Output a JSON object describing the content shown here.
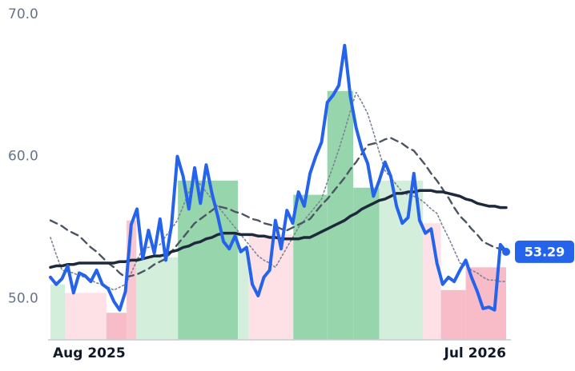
{
  "chart_data": {
    "type": "line",
    "categories": [
      "Aug 2025",
      null,
      null,
      null,
      null,
      null,
      null,
      null,
      null,
      null,
      null,
      null,
      null,
      null,
      null,
      null,
      null,
      null,
      null,
      null,
      null,
      null,
      null,
      null,
      null,
      null,
      null,
      null,
      null,
      null,
      null,
      null,
      null,
      null,
      null,
      null,
      null,
      null,
      null,
      null,
      null,
      null,
      null,
      null,
      null,
      null,
      null,
      null,
      null,
      null,
      null,
      null,
      null,
      null,
      null,
      null,
      null,
      null,
      null,
      null,
      null,
      null,
      null,
      null,
      null,
      null,
      null,
      null,
      null,
      null,
      null,
      null,
      null,
      null,
      null,
      null,
      null,
      null,
      null,
      "Jul 2026"
    ],
    "ylim": [
      47.1,
      71.0
    ],
    "yticks": [
      {
        "value": 50,
        "label": "50.0"
      },
      {
        "value": 60,
        "label": "60.0"
      },
      {
        "value": 70,
        "label": "70.0"
      }
    ],
    "bands": [
      {
        "from": 0,
        "to": 2.5,
        "value": 51.0,
        "color": "#d4eedc"
      },
      {
        "from": 2.5,
        "to": 9.7,
        "value": 50.4,
        "color": "#fde1e6"
      },
      {
        "from": 9.7,
        "to": 13.2,
        "value": 49.0,
        "color": "#f7bcc8"
      },
      {
        "from": 13.2,
        "to": 14.9,
        "value": 55.5,
        "color": "#f9c7d0"
      },
      {
        "from": 14.9,
        "to": 22.1,
        "value": 52.9,
        "color": "#d4eedc"
      },
      {
        "from": 22.1,
        "to": 32.5,
        "value": 58.3,
        "color": "#97d6ac"
      },
      {
        "from": 32.5,
        "to": 34.4,
        "value": 53.4,
        "color": "#d4eedc"
      },
      {
        "from": 34.4,
        "to": 42.1,
        "value": 54.5,
        "color": "#fde1e6"
      },
      {
        "from": 42.1,
        "to": 48,
        "value": 57.3,
        "color": "#97d6ac"
      },
      {
        "from": 48,
        "to": 52.5,
        "value": 64.6,
        "color": "#97d6ac"
      },
      {
        "from": 52.5,
        "to": 57,
        "value": 57.8,
        "color": "#97d6ac"
      },
      {
        "from": 57,
        "to": 64.6,
        "value": 58.3,
        "color": "#d4eedc"
      },
      {
        "from": 64.6,
        "to": 67.7,
        "value": 55.3,
        "color": "#fde1e6"
      },
      {
        "from": 67.7,
        "to": 72,
        "value": 50.6,
        "color": "#f7bcc8"
      },
      {
        "from": 72,
        "to": 79,
        "value": 52.2,
        "color": "#f7bcc8"
      }
    ],
    "series": [
      {
        "color": "#7b8496",
        "style": "dotted",
        "values": [
          54.3,
          53.1,
          52.0,
          51.9,
          51.8,
          51.6,
          51.5,
          51.3,
          51.1,
          51.0,
          50.8,
          50.6,
          50.8,
          51.0,
          51.8,
          52.7,
          53.5,
          53.6,
          53.7,
          53.8,
          54.4,
          54.9,
          55.5,
          56.5,
          57.5,
          58.5,
          58.0,
          57.5,
          57.0,
          56.5,
          56.0,
          55.5,
          55.0,
          54.5,
          54.0,
          53.5,
          53.0,
          52.7,
          52.5,
          52.2,
          52.9,
          53.6,
          54.3,
          55.0,
          55.5,
          56.0,
          56.5,
          57.0,
          58.2,
          59.3,
          60.5,
          61.8,
          63.2,
          64.5,
          63.8,
          63.0,
          61.7,
          60.3,
          59.0,
          58.5,
          58.0,
          57.5,
          57.3,
          57.2,
          57.0,
          56.7,
          56.3,
          56.0,
          55.1,
          54.3,
          53.4,
          52.5,
          52.3,
          52.0,
          51.8,
          51.5,
          51.3,
          51.3,
          51.2,
          51.2
        ]
      },
      {
        "color": "#4b5563",
        "style": "dashed",
        "values": [
          55.5,
          55.3,
          55.1,
          54.8,
          54.6,
          54.4,
          54.0,
          53.6,
          53.3,
          52.9,
          52.5,
          52.2,
          51.8,
          51.5,
          51.6,
          51.7,
          51.9,
          52.1,
          52.4,
          52.6,
          52.8,
          53.3,
          53.8,
          54.3,
          54.8,
          55.3,
          55.6,
          55.9,
          56.2,
          56.5,
          56.4,
          56.3,
          56.1,
          56.0,
          55.8,
          55.6,
          55.5,
          55.3,
          55.2,
          55.1,
          54.9,
          54.8,
          55.0,
          55.2,
          55.4,
          55.6,
          56.1,
          56.6,
          57.0,
          57.5,
          58.0,
          58.5,
          59.1,
          59.6,
          60.2,
          60.8,
          60.9,
          61.0,
          61.2,
          61.3,
          61.1,
          60.9,
          60.6,
          60.4,
          59.9,
          59.4,
          58.8,
          58.3,
          57.7,
          57.1,
          56.4,
          55.8,
          55.4,
          54.9,
          54.5,
          54.0,
          53.8,
          53.6,
          53.5,
          53.3
        ]
      },
      {
        "color": "#1e293b",
        "style": "solid",
        "values": [
          52.2,
          52.3,
          52.3,
          52.4,
          52.4,
          52.5,
          52.5,
          52.5,
          52.5,
          52.5,
          52.5,
          52.5,
          52.6,
          52.6,
          52.7,
          52.7,
          52.8,
          52.9,
          53.0,
          53.0,
          53.1,
          53.3,
          53.4,
          53.6,
          53.7,
          53.9,
          54.0,
          54.2,
          54.3,
          54.5,
          54.6,
          54.6,
          54.6,
          54.5,
          54.5,
          54.5,
          54.4,
          54.4,
          54.3,
          54.3,
          54.2,
          54.2,
          54.2,
          54.2,
          54.3,
          54.3,
          54.5,
          54.7,
          54.9,
          55.1,
          55.3,
          55.5,
          55.8,
          56.0,
          56.3,
          56.5,
          56.7,
          56.9,
          57.0,
          57.2,
          57.4,
          57.4,
          57.5,
          57.5,
          57.6,
          57.6,
          57.6,
          57.5,
          57.5,
          57.4,
          57.3,
          57.2,
          57.0,
          56.9,
          56.7,
          56.6,
          56.5,
          56.5,
          56.4,
          56.4
        ]
      },
      {
        "color": "#2563eb",
        "style": "thick",
        "values": [
          51.5,
          51.0,
          51.4,
          52.3,
          50.4,
          51.8,
          51.6,
          51.2,
          52.0,
          51.0,
          50.7,
          49.8,
          49.2,
          50.5,
          55.2,
          56.3,
          52.8,
          54.8,
          53.2,
          55.6,
          52.7,
          55.2,
          60.0,
          58.6,
          56.3,
          59.2,
          56.7,
          59.4,
          57.4,
          55.8,
          54.0,
          53.5,
          54.4,
          53.3,
          53.6,
          51.0,
          50.2,
          51.5,
          52.0,
          55.5,
          53.5,
          56.2,
          55.3,
          57.5,
          56.5,
          58.8,
          60.0,
          61.0,
          63.8,
          64.3,
          65.0,
          67.8,
          64.2,
          62.0,
          60.5,
          59.5,
          57.2,
          58.3,
          59.6,
          58.6,
          56.5,
          55.3,
          55.7,
          58.8,
          55.5,
          54.6,
          54.9,
          52.5,
          51.0,
          51.5,
          51.2,
          52.0,
          52.7,
          51.5,
          50.5,
          49.3,
          49.4,
          49.2,
          53.8,
          53.29
        ],
        "value_labels": [
          null,
          null,
          null,
          null,
          null,
          null,
          null,
          null,
          null,
          null,
          null,
          null,
          null,
          null,
          null,
          null,
          null,
          null,
          null,
          null,
          null,
          null,
          null,
          null,
          null,
          null,
          null,
          null,
          null,
          null,
          null,
          null,
          null,
          null,
          null,
          null,
          null,
          null,
          null,
          null,
          null,
          null,
          null,
          null,
          null,
          null,
          null,
          null,
          null,
          null,
          null,
          null,
          null,
          null,
          null,
          null,
          null,
          null,
          null,
          null,
          null,
          null,
          null,
          null,
          null,
          null,
          null,
          null,
          null,
          null,
          null,
          null,
          null,
          null,
          null,
          null,
          null,
          null,
          null,
          "53.29"
        ]
      }
    ]
  }
}
